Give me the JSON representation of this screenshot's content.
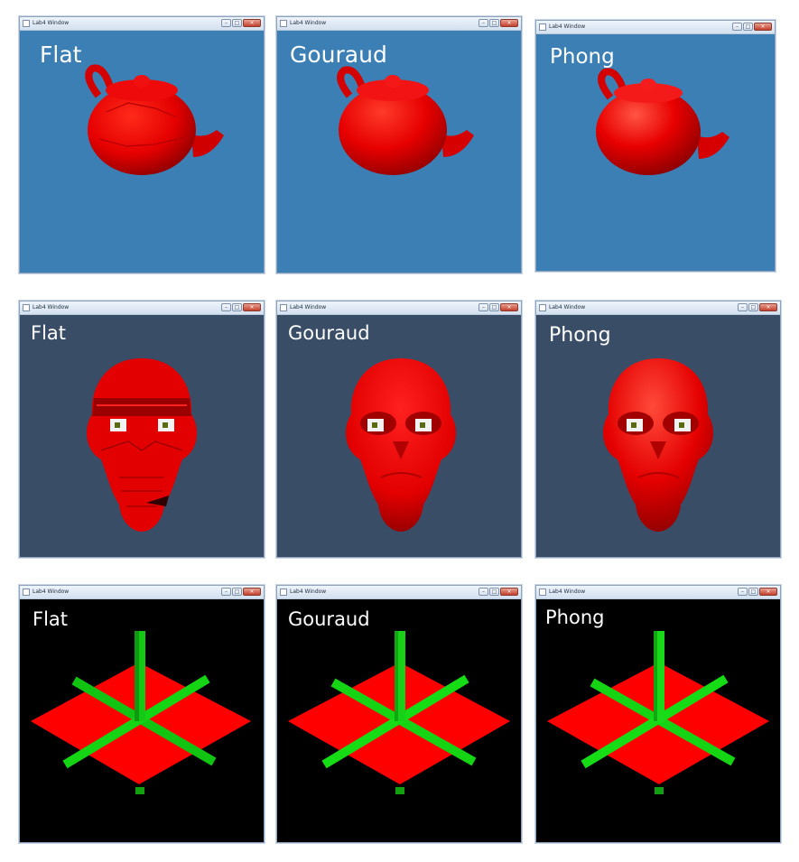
{
  "window_title": "Lab4 Window",
  "title_buttons": {
    "minimize": "–",
    "maximize": "□",
    "close": "×"
  },
  "shading_labels": [
    "Flat",
    "Gouraud",
    "Phong"
  ],
  "rows": [
    {
      "model": "teapot",
      "background_color": "#3b7fb4",
      "mesh_color": "#e80000"
    },
    {
      "model": "skull",
      "background_color": "#3a4d66",
      "mesh_color": "#e20000"
    },
    {
      "model": "axes-on-plane",
      "background_color": "#000000",
      "plane_color": "#ff0000",
      "axis_color": "#14d414"
    }
  ]
}
